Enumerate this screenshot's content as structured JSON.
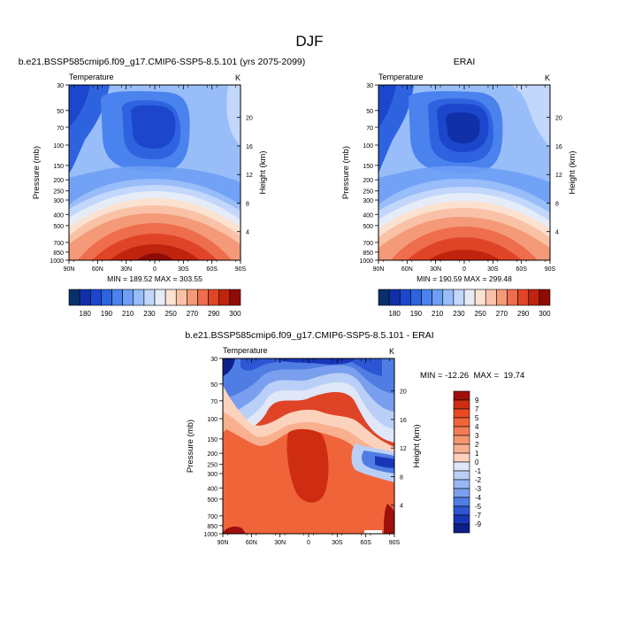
{
  "page_title": "DJF",
  "chart_data": [
    {
      "type": "heatmap",
      "id": "model",
      "title": "b.e21.BSSP585cmip6.f09_g17.CMIP6-SSP5-8.5.101 (yrs 2075-2099)",
      "variable_label": "Temperature",
      "units_label": "K",
      "ylabel": "Pressure (mb)",
      "right_ylabel": "Height (km)",
      "x_ticks": [
        "90N",
        "60N",
        "30N",
        "0",
        "30S",
        "60S",
        "90S"
      ],
      "y_ticks": [
        "30",
        "50",
        "70",
        "100",
        "150",
        "200",
        "250",
        "300",
        "400",
        "500",
        "700",
        "850",
        "1000"
      ],
      "right_ticks": [
        "20",
        "16",
        "12",
        "8",
        "4"
      ],
      "stats": "MIN = 189.52   MAX = 303.55",
      "min": 189.52,
      "max": 303.55,
      "contour_levels": [
        180,
        185,
        190,
        200,
        210,
        220,
        230,
        240,
        250,
        260,
        270,
        280,
        290,
        295,
        300
      ]
    },
    {
      "type": "heatmap",
      "id": "obs",
      "title": "ERAI",
      "variable_label": "Temperature",
      "units_label": "K",
      "ylabel": "Pressure (mb)",
      "right_ylabel": "Height (km)",
      "x_ticks": [
        "90N",
        "60N",
        "30N",
        "0",
        "30S",
        "60S",
        "90S"
      ],
      "y_ticks": [
        "30",
        "50",
        "70",
        "100",
        "150",
        "200",
        "250",
        "300",
        "400",
        "500",
        "700",
        "850",
        "1000"
      ],
      "right_ticks": [
        "20",
        "16",
        "12",
        "8",
        "4"
      ],
      "stats": "MIN = 190.59   MAX = 299.48",
      "min": 190.59,
      "max": 299.48,
      "contour_levels": [
        180,
        185,
        190,
        200,
        210,
        220,
        230,
        240,
        250,
        260,
        270,
        280,
        290,
        295,
        300
      ]
    },
    {
      "type": "heatmap",
      "id": "diff",
      "title": "b.e21.BSSP585cmip6.f09_g17.CMIP6-SSP5-8.5.101 - ERAI",
      "variable_label": "Temperature",
      "units_label": "K",
      "ylabel": "Pressure (mb)",
      "right_ylabel": "Height (km)",
      "x_ticks": [
        "90N",
        "60N",
        "30N",
        "0",
        "30S",
        "60S",
        "90S"
      ],
      "y_ticks": [
        "30",
        "50",
        "70",
        "100",
        "150",
        "200",
        "250",
        "300",
        "400",
        "500",
        "700",
        "850",
        "1000"
      ],
      "right_ticks": [
        "20",
        "16",
        "12",
        "8",
        "4"
      ],
      "stats": "MIN = -12.26  MAX =  19.74",
      "min": -12.26,
      "max": 19.74,
      "contour_levels": [
        -9,
        -7,
        -5,
        -4,
        -3,
        -2,
        -1,
        0,
        1,
        2,
        3,
        4,
        5,
        7,
        9
      ]
    }
  ],
  "abs_colorbar": {
    "labels": [
      "180",
      "190",
      "210",
      "230",
      "250",
      "270",
      "290",
      "300"
    ],
    "colors": [
      "#08306b",
      "#1030a8",
      "#1c46cc",
      "#2e63e0",
      "#4a82ee",
      "#6e9ef5",
      "#98bdf9",
      "#c2d7fb",
      "#e6ecf7",
      "#fbe1d0",
      "#f9c2a7",
      "#f49a78",
      "#ee6d4c",
      "#e04427",
      "#c0240f",
      "#8e0c06"
    ]
  },
  "diff_colorbar": {
    "labels": [
      "9",
      "7",
      "5",
      "4",
      "3",
      "2",
      "1",
      "0",
      "-1",
      "-2",
      "-3",
      "-4",
      "-5",
      "-7",
      "-9"
    ],
    "colors": [
      "#a0100a",
      "#cf2d12",
      "#e84a22",
      "#f0643a",
      "#f47c55",
      "#f69670",
      "#f8b08e",
      "#fbd3bd",
      "#dfe7f8",
      "#b9cff7",
      "#98b8f3",
      "#7a9fee",
      "#4f7de3",
      "#2d56d4",
      "#1a36b8",
      "#0c1f8a"
    ]
  }
}
